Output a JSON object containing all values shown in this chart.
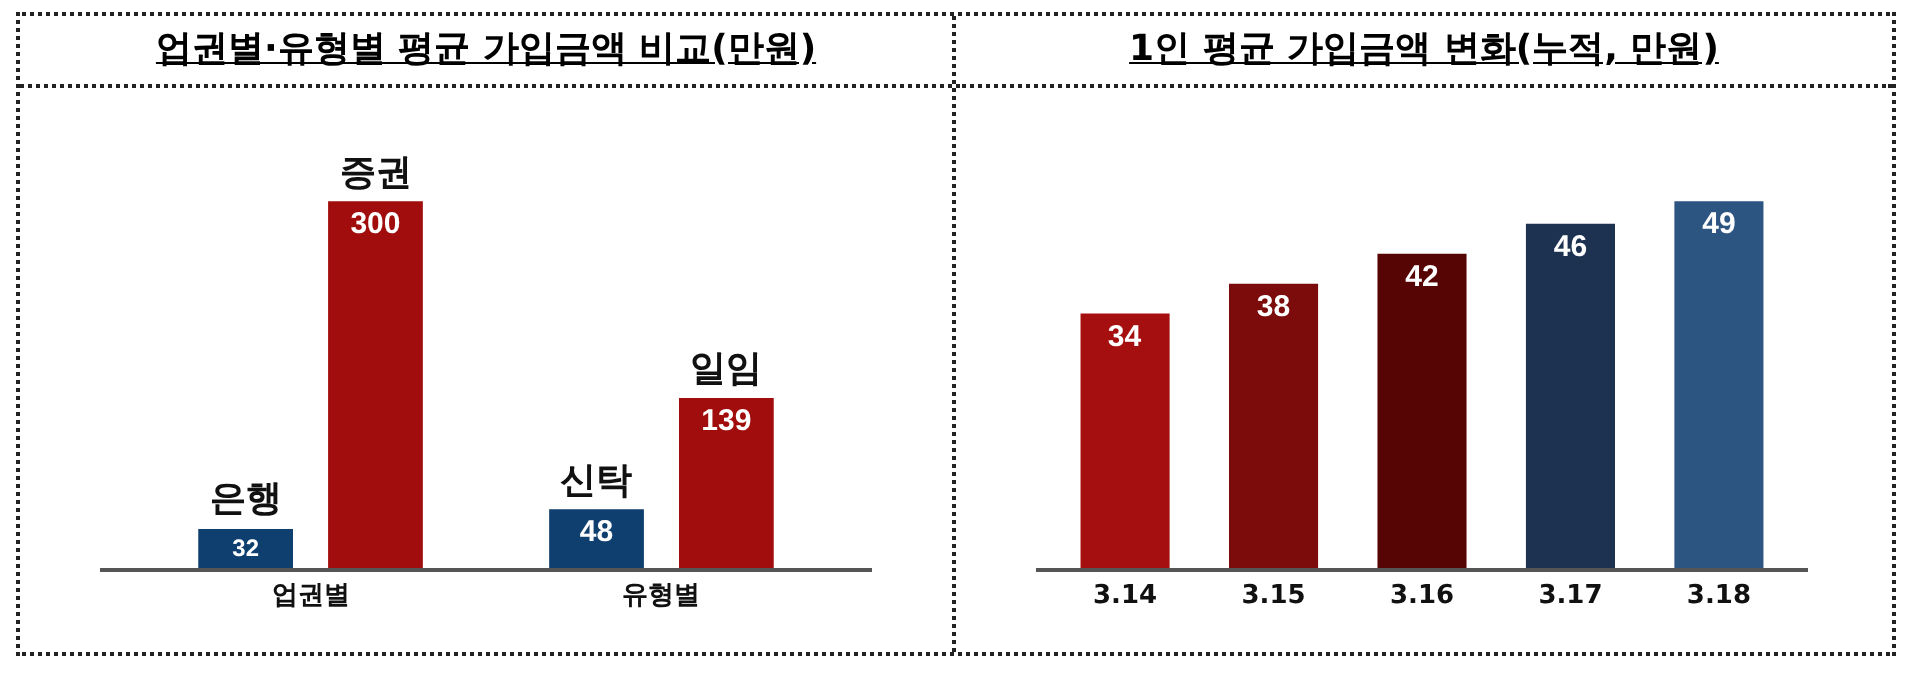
{
  "chart_data": [
    {
      "type": "bar",
      "title": "업권별·유형별 평균 가입금액 비교(만원)",
      "categories": [
        "업권별",
        "유형별"
      ],
      "series": [
        {
          "color": "#0f3f6e",
          "values": [
            32,
            48
          ]
        },
        {
          "color": "#a10d0d",
          "values": [
            300,
            139
          ]
        }
      ],
      "data_labels": true,
      "annotations": [
        "은행",
        "증권",
        "신탁",
        "일임"
      ]
    },
    {
      "type": "bar",
      "title": "1인 평균 가입금액 변화(누적, 만원)",
      "categories": [
        "3.14",
        "3.15",
        "3.16",
        "3.17",
        "3.18"
      ],
      "values": [
        34,
        38,
        42,
        46,
        49
      ],
      "colors": [
        "#a50f0f",
        "#7c0b0b",
        "#560404",
        "#1d3250",
        "#2d5582"
      ],
      "data_labels": true
    }
  ]
}
